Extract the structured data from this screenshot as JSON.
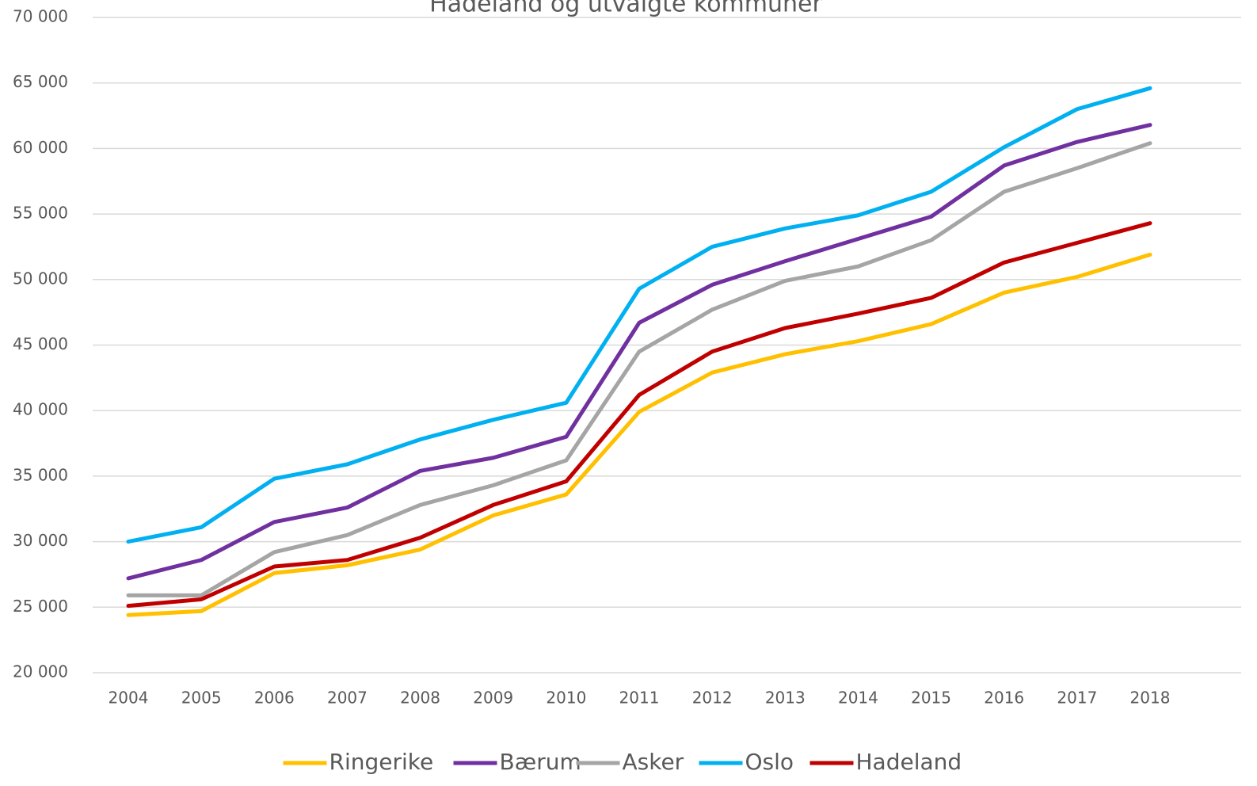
{
  "chart_data": {
    "type": "line",
    "title": "Hadeland og utvalgte kommuner",
    "categories": [
      "2004",
      "2005",
      "2006",
      "2007",
      "2008",
      "2009",
      "2010",
      "2011",
      "2012",
      "2013",
      "2014",
      "2015",
      "2016",
      "2017",
      "2018"
    ],
    "series": [
      {
        "name": "Ringerike",
        "color": "#ffc000",
        "values": [
          24400,
          24700,
          27600,
          28200,
          29400,
          32000,
          33600,
          39900,
          42900,
          44300,
          45300,
          46600,
          49000,
          50200,
          51900
        ]
      },
      {
        "name": "Bærum",
        "color": "#7030a0",
        "values": [
          27200,
          28600,
          31500,
          32600,
          35400,
          36400,
          38000,
          46700,
          49600,
          51400,
          53100,
          54800,
          58700,
          60500,
          61800
        ]
      },
      {
        "name": "Asker",
        "color": "#a5a5a5",
        "values": [
          25900,
          25900,
          29200,
          30500,
          32800,
          34300,
          36200,
          44500,
          47700,
          49900,
          51000,
          53000,
          56700,
          58500,
          60400
        ]
      },
      {
        "name": "Oslo",
        "color": "#00b0f0",
        "values": [
          30000,
          31100,
          34800,
          35900,
          37800,
          39300,
          40600,
          49300,
          52500,
          53900,
          54900,
          56700,
          60100,
          63000,
          64600
        ]
      },
      {
        "name": "Hadeland",
        "color": "#c00000",
        "values": [
          25100,
          25600,
          28100,
          28600,
          30300,
          32800,
          34600,
          41200,
          44500,
          46300,
          47400,
          48600,
          51300,
          52800,
          54300
        ]
      }
    ],
    "ylim": [
      20000,
      70000
    ],
    "yticks": [
      {
        "value": 20000,
        "label": "20 000"
      },
      {
        "value": 25000,
        "label": "25 000"
      },
      {
        "value": 30000,
        "label": "30 000"
      },
      {
        "value": 35000,
        "label": "35 000"
      },
      {
        "value": 40000,
        "label": "40 000"
      },
      {
        "value": 45000,
        "label": "45 000"
      },
      {
        "value": 50000,
        "label": "50 000"
      },
      {
        "value": 55000,
        "label": "55 000"
      },
      {
        "value": 60000,
        "label": "60 000"
      },
      {
        "value": 65000,
        "label": "65 000"
      },
      {
        "value": 70000,
        "label": "70 000"
      }
    ],
    "grid": true,
    "legend": "bottom"
  }
}
